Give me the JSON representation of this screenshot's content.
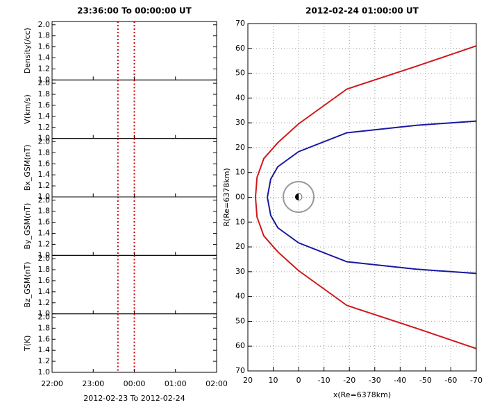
{
  "chart_data": [
    {
      "type": "panels",
      "title": "23:36:00  To  00:00:00  UT",
      "xlabel": "2012-02-23   To   2012-02-24",
      "panels": [
        {
          "ylabel": "Density(/cc)"
        },
        {
          "ylabel": "V(km/s)"
        },
        {
          "ylabel": "Bx_GSM(nT)"
        },
        {
          "ylabel": "By_GSM(nT)"
        },
        {
          "ylabel": "Bz_GSM(nT)"
        },
        {
          "ylabel": "T(K)"
        }
      ],
      "xlim": [
        22,
        26
      ],
      "xticks": [
        {
          "value": 22,
          "label": "22:00"
        },
        {
          "value": 23,
          "label": "23:00"
        },
        {
          "value": 24,
          "label": "00:00"
        },
        {
          "value": 25,
          "label": "01:00"
        },
        {
          "value": 26,
          "label": "02:00"
        }
      ],
      "ylim": [
        1.0,
        2.06
      ],
      "yticks": [
        {
          "value": 1,
          "label": "1.0"
        },
        1.2,
        1.4,
        1.6,
        1.8,
        {
          "value": 2,
          "label": "2.0"
        }
      ],
      "vlines": [
        23.6,
        24
      ],
      "vline_color": "#cc0000"
    },
    {
      "type": "line",
      "title": "2012-02-24  01:00:00  UT",
      "xlabel": "x(Re=6378km)",
      "ylabel": "R(Re=6378km)",
      "xlim": [
        20,
        -70
      ],
      "xticks": [
        20,
        10,
        0,
        -10,
        -20,
        -30,
        -40,
        -50,
        -60,
        -70
      ],
      "ylim": [
        -70,
        70
      ],
      "yticks": [
        70,
        60,
        50,
        40,
        30,
        20,
        10,
        {
          "value": 0,
          "label": "00"
        },
        {
          "value": -10,
          "label": "10"
        },
        {
          "value": -20,
          "label": "20"
        },
        {
          "value": -30,
          "label": "30"
        },
        {
          "value": -40,
          "label": "40"
        },
        {
          "value": -50,
          "label": "50"
        },
        {
          "value": -60,
          "label": "60"
        },
        {
          "value": -70,
          "label": "70"
        }
      ],
      "grid": true,
      "series": [
        {
          "color": "#d01818",
          "x": [
            -70,
            -46.4,
            -19,
            0,
            8.2,
            13.7,
            16.4,
            17,
            16.4,
            13.7,
            8.2,
            0,
            -19,
            -46.4,
            -70
          ],
          "y": [
            61,
            52.8,
            43.6,
            29.6,
            22,
            15.6,
            8,
            0,
            -8,
            -15.6,
            -22,
            -29.6,
            -43.6,
            -52.8,
            -61
          ]
        },
        {
          "color": "#1818a0",
          "x": [
            -70,
            -46.4,
            -19,
            0,
            8.2,
            11,
            12.3,
            11,
            8.2,
            0,
            -19,
            -46.4,
            -70
          ],
          "y": [
            30.7,
            29,
            26,
            18.4,
            12.3,
            7.3,
            0,
            -7.3,
            -12.3,
            -18.4,
            -26,
            -29,
            -30.7
          ]
        }
      ]
    }
  ]
}
